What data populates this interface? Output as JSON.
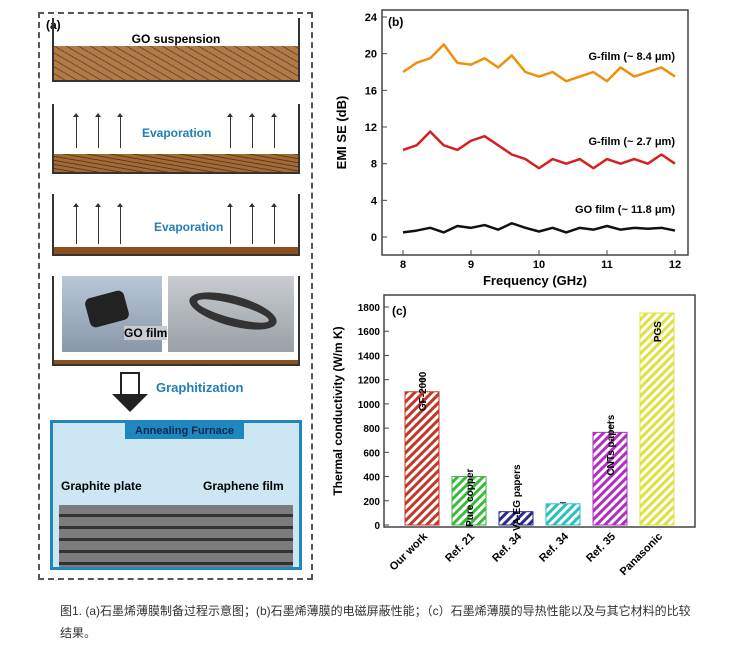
{
  "panel_a": {
    "label": "(a)",
    "go_suspension": "GO suspension",
    "evaporation1": "Evaporation",
    "evaporation2": "Evaporation",
    "go_film": "GO film",
    "graphitization": "Graphitization",
    "annealing_furnace": "Annealing Furnace",
    "graphite_plate": "Graphite plate",
    "graphene_film": "Graphene film"
  },
  "caption": "图1. (a)石墨烯薄膜制备过程示意图；(b)石墨烯薄膜的电磁屏蔽性能；（c）石墨烯薄膜的导热性能以及与其它材料的比较结果。",
  "chart_data": [
    {
      "type": "line",
      "panel": "(b)",
      "xlabel": "Frequency (GHz)",
      "ylabel": "EMI SE (dB)",
      "xlim": [
        8,
        12
      ],
      "ylim": [
        0,
        24
      ],
      "xticks": [
        "8",
        "9",
        "10",
        "11",
        "12"
      ],
      "yticks": [
        "0",
        "4",
        "8",
        "12",
        "16",
        "20",
        "24"
      ],
      "x": [
        8,
        8.2,
        8.4,
        8.6,
        8.8,
        9,
        9.2,
        9.4,
        9.6,
        9.8,
        10,
        10.2,
        10.4,
        10.6,
        10.8,
        11,
        11.2,
        11.4,
        11.6,
        11.8,
        12
      ],
      "series": [
        {
          "name": "G-film (~ 8.4 μm)",
          "color": "#f0900a",
          "values": [
            18,
            19,
            19.5,
            21,
            19,
            18.8,
            19.5,
            18.5,
            19.8,
            18,
            17.5,
            18,
            17,
            17.5,
            18,
            17,
            18.5,
            17.5,
            18,
            18.5,
            17.5
          ]
        },
        {
          "name": "G-film (~ 2.7 μm)",
          "color": "#d62020",
          "values": [
            9.5,
            10,
            11.5,
            10,
            9.5,
            10.5,
            11,
            10,
            9,
            8.5,
            7.5,
            8.5,
            8,
            8.5,
            7.5,
            8.5,
            8,
            8.5,
            8,
            9,
            8
          ]
        },
        {
          "name": "GO film (~ 11.8 μm)",
          "color": "#111111",
          "values": [
            0.5,
            0.7,
            1,
            0.5,
            1.2,
            1,
            1.3,
            0.8,
            1.5,
            1,
            0.6,
            1,
            0.5,
            1,
            0.8,
            1.2,
            0.8,
            1,
            0.9,
            1,
            0.7
          ]
        }
      ]
    },
    {
      "type": "bar",
      "panel": "(c)",
      "ylabel": "Thermal conductivity (W/m K)",
      "ylim": [
        0,
        1850
      ],
      "yticks": [
        "0",
        "200",
        "400",
        "600",
        "800",
        "1000",
        "1200",
        "1400",
        "1600",
        "1800"
      ],
      "categories": [
        "Our work",
        "Ref. 21",
        "Ref. 34",
        "Ref. 34",
        "Ref. 35",
        "Panasonic"
      ],
      "values": [
        1100,
        400,
        110,
        175,
        765,
        1750
      ],
      "errors": [
        100,
        0,
        0,
        10,
        80,
        0
      ],
      "bar_labels": [
        "GF-2000",
        "Pure copper",
        "VA-EG papers",
        "",
        "CNTs papers",
        "PGS"
      ],
      "colors": [
        "#c0392b",
        "#3cb83c",
        "#2a2a8a",
        "#2cc0c0",
        "#b030c0",
        "#e0e040"
      ]
    }
  ]
}
